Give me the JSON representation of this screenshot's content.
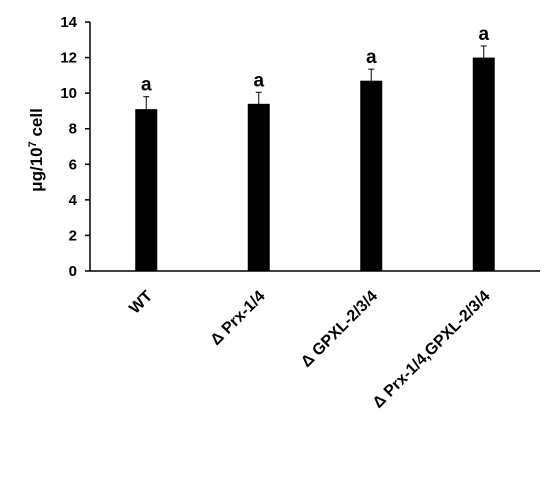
{
  "chart_data": {
    "type": "bar",
    "categories": [
      "WT",
      "Δ Prx-1/4",
      "Δ GPXL-2/3/4",
      "Δ Prx-1/4,GPXL-2/3/4"
    ],
    "values": [
      9.1,
      9.4,
      10.7,
      12.0
    ],
    "errors": [
      0.7,
      0.65,
      0.65,
      0.65
    ],
    "significance": [
      "a",
      "a",
      "a",
      "a"
    ],
    "ylabel": {
      "main": "μg/10",
      "sup": "7",
      "tail": " cell"
    },
    "ylim": [
      0,
      14
    ],
    "yticks": [
      "0",
      "2",
      "4",
      "6",
      "8",
      "10",
      "12",
      "14"
    ],
    "colors": {
      "bar": "#000000",
      "axis": "#000000"
    },
    "grid": false,
    "legend": "none"
  }
}
